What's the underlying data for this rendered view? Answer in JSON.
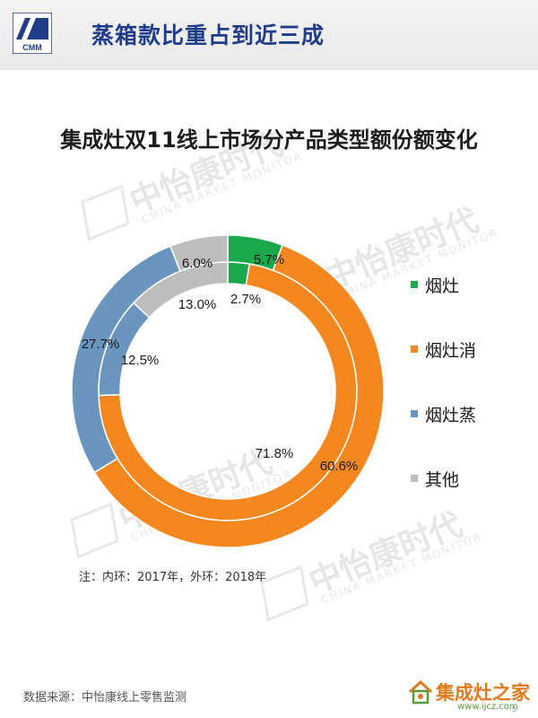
{
  "header": {
    "logo_text": "CMM",
    "title": "蒸箱款比重占到近三成"
  },
  "watermark": {
    "name": "中怡康时代",
    "sub": "CHINA MARKET MONITOR",
    "logo_text": "CMM"
  },
  "chart_data": {
    "type": "pie",
    "title": "集成灶双11线上市场分产品类型额份额变化",
    "categories": [
      "烟灶",
      "烟灶消",
      "烟灶蒸",
      "其他"
    ],
    "colors": [
      "#1aa84a",
      "#f5871f",
      "#6a95bf",
      "#bdbdbd"
    ],
    "series": [
      {
        "name": "2017年",
        "ring": "inner",
        "values": [
          2.7,
          71.8,
          12.5,
          13.0
        ],
        "labels": [
          "2.7%",
          "71.8%",
          "12.5%",
          "13.0%"
        ]
      },
      {
        "name": "2018年",
        "ring": "outer",
        "values": [
          5.7,
          60.6,
          27.7,
          6.0
        ],
        "labels": [
          "5.7%",
          "60.6%",
          "27.7%",
          "6.0%"
        ]
      }
    ],
    "legend_position": "right",
    "note": "注：内环：2017年，外环：2018年"
  },
  "footer": {
    "source": "数据来源：中怡康线上零售监测",
    "badge_text": "集成灶之家",
    "badge_url": "www.ijcz.com",
    "page_num": "-5-"
  }
}
